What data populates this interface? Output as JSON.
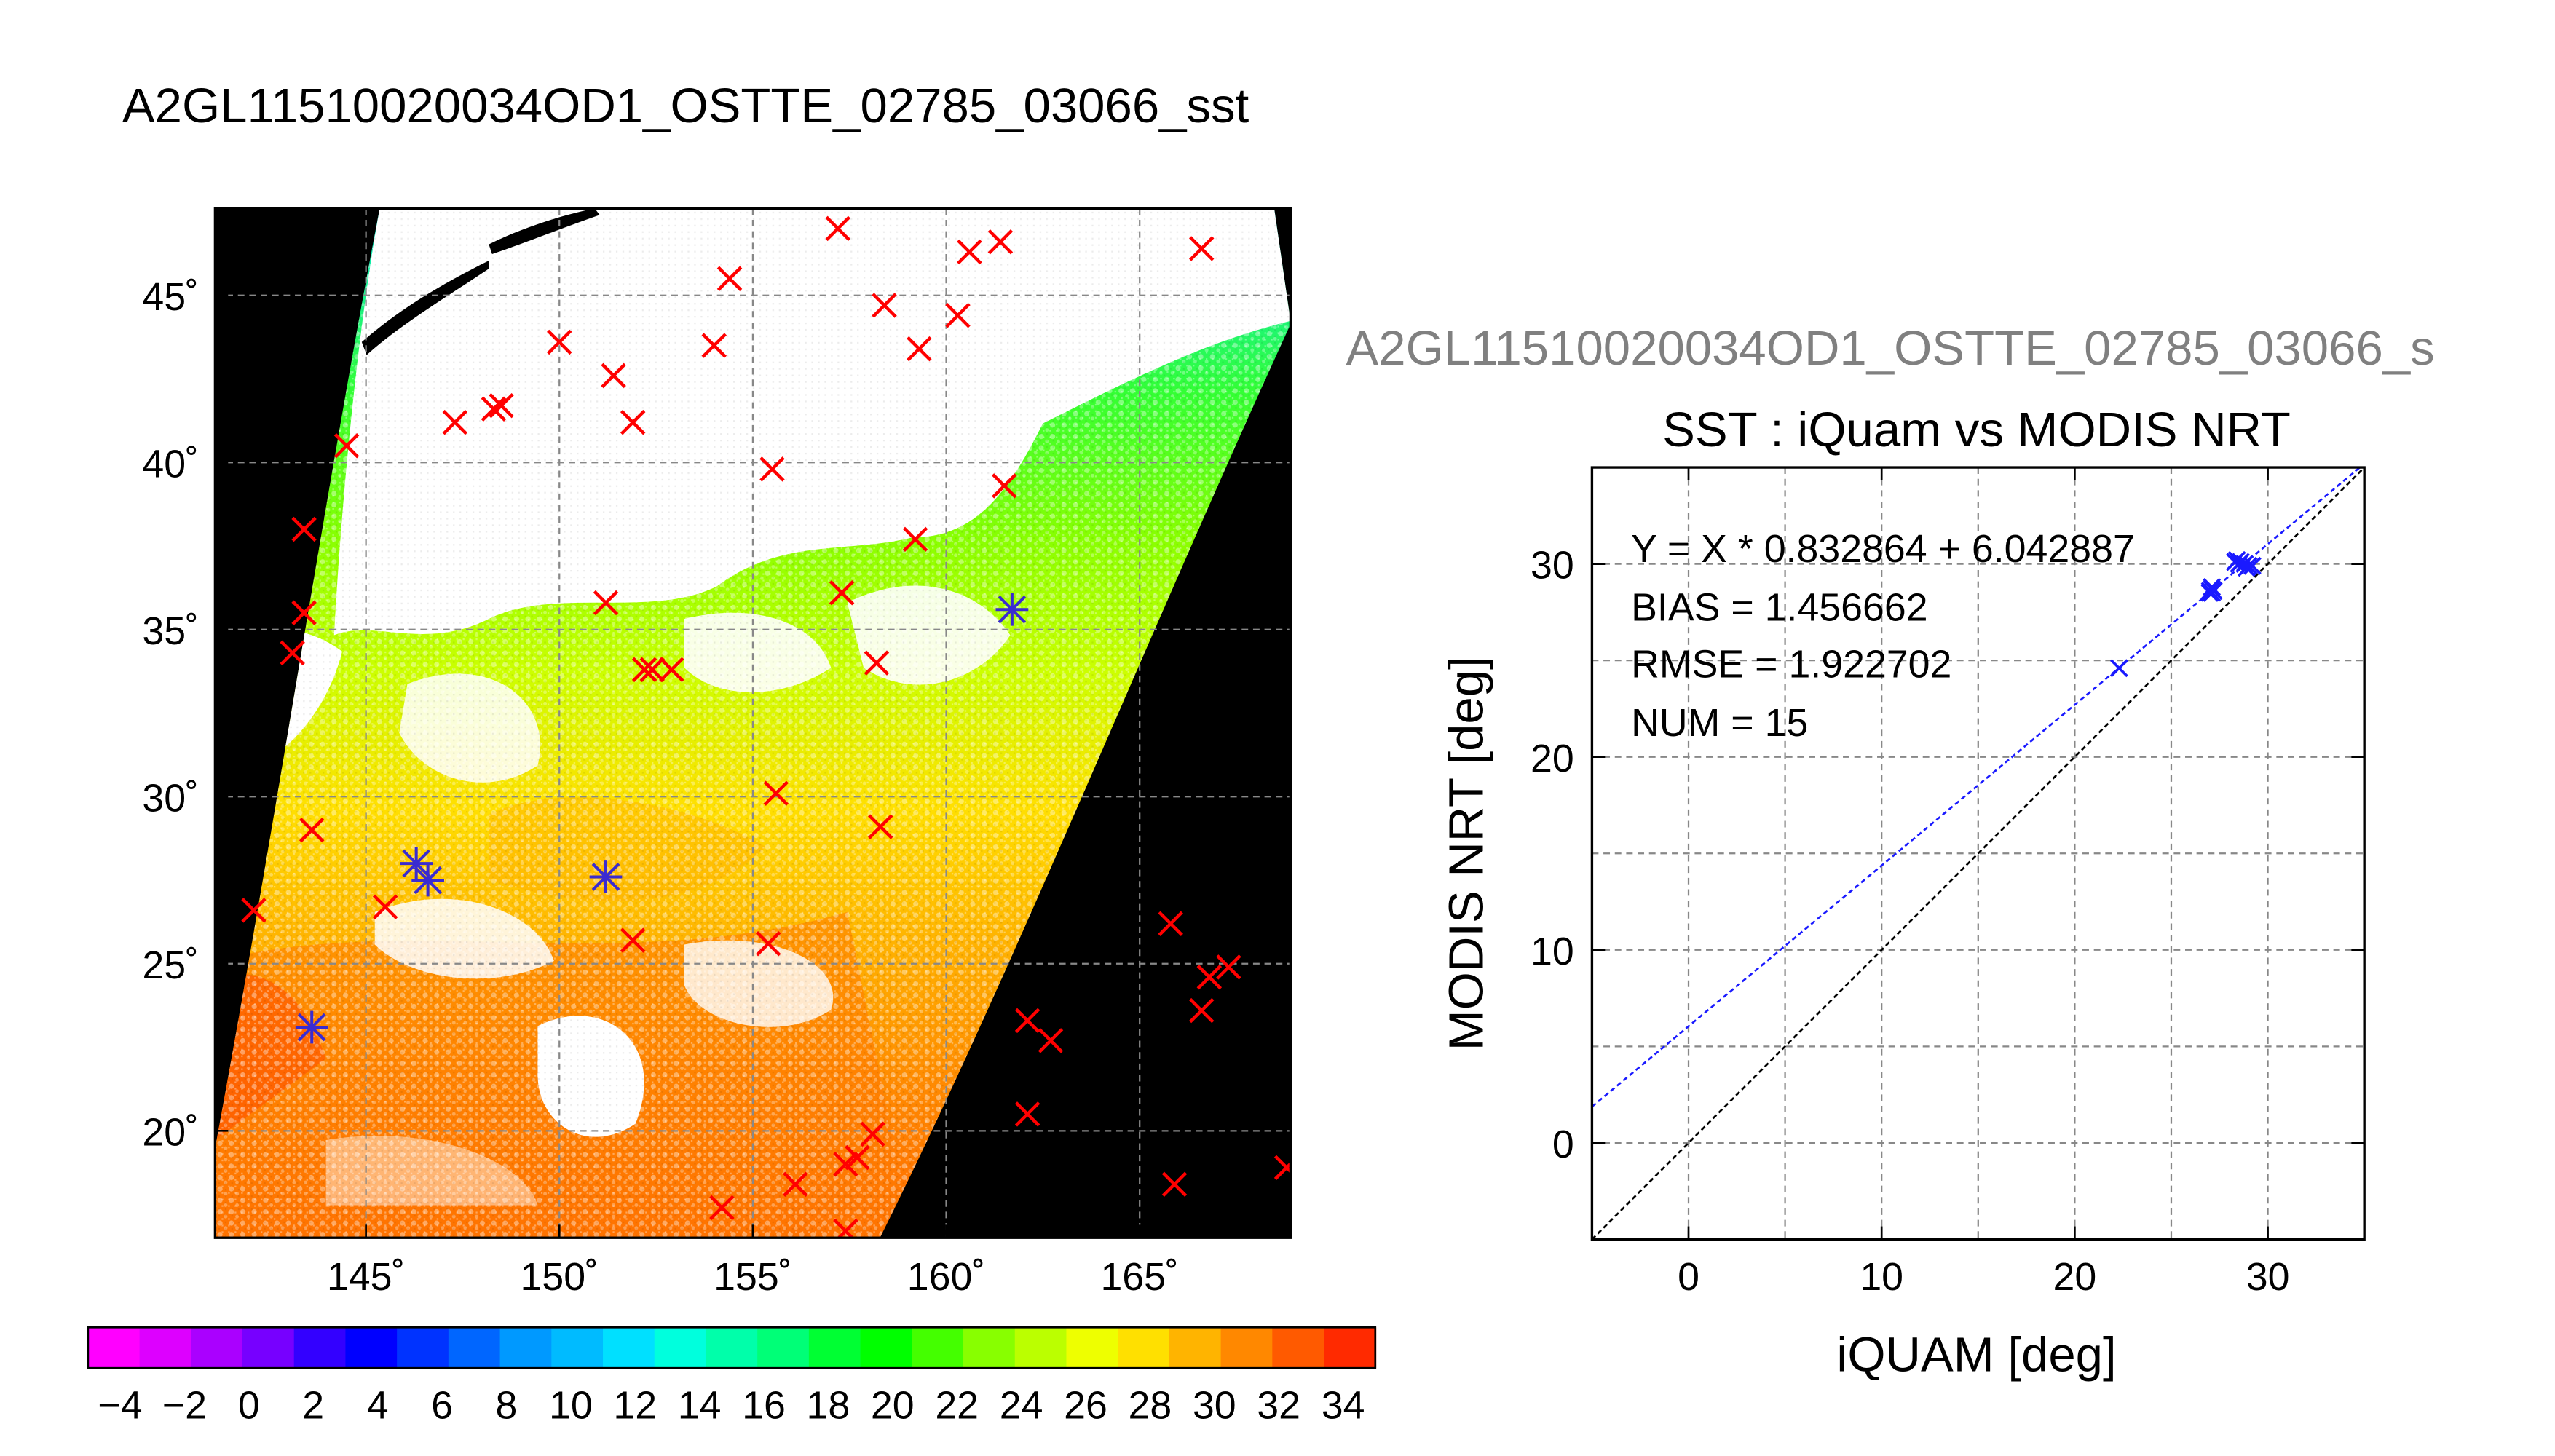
{
  "page_title": "A2GL11510020034OD1_OSTTE_02785_03066_sst",
  "map": {
    "lat_labels": [
      "45˚",
      "40˚",
      "35˚",
      "30˚",
      "25˚",
      "20˚"
    ],
    "lon_labels": [
      "145˚",
      "150˚",
      "155˚",
      "160˚",
      "165˚"
    ],
    "lat_values": [
      45,
      40,
      35,
      30,
      25,
      20
    ],
    "lon_values": [
      145,
      150,
      155,
      160,
      165
    ],
    "lat_range": [
      16.8,
      47.6
    ],
    "lon_range": [
      141.1,
      168.9
    ],
    "background_color": "#000000",
    "cloud_color": "#ffffff",
    "grid_color": "#888888",
    "matchup_color": "#ff0000",
    "valid_color": "#3a2bd0"
  },
  "colorbar": {
    "tick_labels": [
      "−4",
      "−2",
      "0",
      "2",
      "4",
      "6",
      "8",
      "10",
      "12",
      "14",
      "16",
      "18",
      "20",
      "22",
      "24",
      "26",
      "28",
      "30",
      "32",
      "34"
    ],
    "range": [
      -5,
      35
    ],
    "colors": [
      "#ff00ff",
      "#dd00ff",
      "#aa00ff",
      "#7700ff",
      "#3300ff",
      "#0000ff",
      "#0033ff",
      "#0066ff",
      "#0099ff",
      "#00bbff",
      "#00e0ff",
      "#00ffdd",
      "#00ffaa",
      "#00ff77",
      "#00ff33",
      "#00ff00",
      "#44ff00",
      "#88ff00",
      "#bbff00",
      "#eeff00",
      "#ffe000",
      "#ffb400",
      "#ff8800",
      "#ff5a00",
      "#ff2a00"
    ]
  },
  "scatter_panel": {
    "header": "A2GL11510020034OD1_OSTTE_02785_03066_s",
    "title": "SST : iQuam vs MODIS NRT",
    "stats": [
      "Y = X * 0.832864 + 6.042887",
      "BIAS = 1.456662",
      "RMSE = 1.922702",
      "NUM = 15"
    ],
    "x_ticks": [
      "0",
      "10",
      "20",
      "30"
    ],
    "y_ticks": [
      "0",
      "10",
      "20",
      "30"
    ]
  },
  "chart_data": [
    {
      "type": "heatmap",
      "title": "A2GL11510020034OD1_OSTTE_02785_03066_sst",
      "xlabel": "",
      "ylabel": "",
      "x_range": [
        141.1,
        168.9
      ],
      "y_range": [
        16.8,
        47.6
      ],
      "x_ticks": [
        145,
        150,
        155,
        160,
        165
      ],
      "y_ticks": [
        20,
        25,
        30,
        35,
        40,
        45
      ],
      "grid": true,
      "colorbar": {
        "min": -5,
        "max": 35,
        "ticks": [
          -4,
          -2,
          0,
          2,
          4,
          6,
          8,
          10,
          12,
          14,
          16,
          18,
          20,
          22,
          24,
          26,
          28,
          30,
          32,
          34
        ]
      },
      "matchup_markers": [
        [
          157.2,
          47.0
        ],
        [
          160.6,
          46.3
        ],
        [
          161.4,
          46.6
        ],
        [
          166.6,
          46.4
        ],
        [
          154.4,
          45.5
        ],
        [
          158.4,
          44.7
        ],
        [
          160.3,
          44.4
        ],
        [
          150.0,
          43.6
        ],
        [
          154.0,
          43.5
        ],
        [
          159.3,
          43.4
        ],
        [
          151.4,
          42.6
        ],
        [
          148.3,
          41.6
        ],
        [
          148.5,
          41.7
        ],
        [
          147.3,
          41.2
        ],
        [
          144.5,
          40.5
        ],
        [
          151.9,
          41.2
        ],
        [
          155.5,
          39.8
        ],
        [
          161.5,
          39.3
        ],
        [
          143.4,
          38.0
        ],
        [
          159.2,
          37.7
        ],
        [
          143.4,
          35.5
        ],
        [
          151.2,
          35.8
        ],
        [
          157.3,
          36.1
        ],
        [
          143.1,
          34.3
        ],
        [
          152.2,
          33.8
        ],
        [
          152.4,
          33.8
        ],
        [
          152.9,
          33.8
        ],
        [
          158.2,
          34.0
        ],
        [
          143.6,
          29.0
        ],
        [
          155.6,
          30.1
        ],
        [
          158.3,
          29.1
        ],
        [
          142.1,
          26.6
        ],
        [
          145.5,
          26.7
        ],
        [
          151.9,
          25.7
        ],
        [
          155.4,
          25.6
        ],
        [
          165.8,
          26.2
        ],
        [
          166.8,
          24.6
        ],
        [
          167.3,
          24.9
        ],
        [
          166.6,
          23.6
        ],
        [
          162.1,
          23.3
        ],
        [
          162.7,
          22.7
        ],
        [
          162.1,
          20.5
        ],
        [
          158.1,
          19.9
        ],
        [
          157.7,
          19.2
        ],
        [
          157.4,
          19.0
        ],
        [
          156.1,
          18.4
        ],
        [
          154.2,
          17.7
        ],
        [
          157.4,
          17.0
        ],
        [
          165.9,
          18.4
        ],
        [
          168.8,
          18.9
        ]
      ],
      "valid_markers": [
        [
          161.7,
          35.6
        ],
        [
          146.3,
          28.0
        ],
        [
          146.6,
          27.5
        ],
        [
          151.2,
          27.6
        ],
        [
          143.6,
          23.1
        ]
      ]
    },
    {
      "type": "scatter",
      "title": "SST : iQuam vs MODIS NRT",
      "xlabel": "iQUAM [deg]",
      "ylabel": "MODIS NRT [deg]",
      "xlim": [
        -5,
        35
      ],
      "ylim": [
        -5,
        35
      ],
      "x_ticks": [
        0,
        10,
        20,
        30
      ],
      "y_ticks": [
        0,
        10,
        20,
        30
      ],
      "grid": true,
      "annotations": [
        "Y = X * 0.832864 + 6.042887",
        "BIAS = 1.456662",
        "RMSE = 1.922702",
        "NUM = 15"
      ],
      "series": [
        {
          "points": [
            [
              22.3,
              24.6
            ],
            [
              27.0,
              28.5
            ],
            [
              27.1,
              28.7
            ],
            [
              27.0,
              28.6
            ],
            [
              27.2,
              28.6
            ],
            [
              27.1,
              28.5
            ],
            [
              28.3,
              30.1
            ],
            [
              28.5,
              30.0
            ],
            [
              28.8,
              30.0
            ],
            [
              29.0,
              29.9
            ],
            [
              29.2,
              29.9
            ],
            [
              28.6,
              30.1
            ],
            [
              28.9,
              29.8
            ],
            [
              27.1,
              28.8
            ],
            [
              28.4,
              30.2
            ]
          ],
          "color": "#1a1aff"
        }
      ],
      "fit_line": {
        "slope": 0.832864,
        "intercept": 6.042887,
        "color": "#1a1aff"
      },
      "identity_line": {
        "slope": 1,
        "intercept": 0,
        "color": "#000000"
      }
    }
  ]
}
